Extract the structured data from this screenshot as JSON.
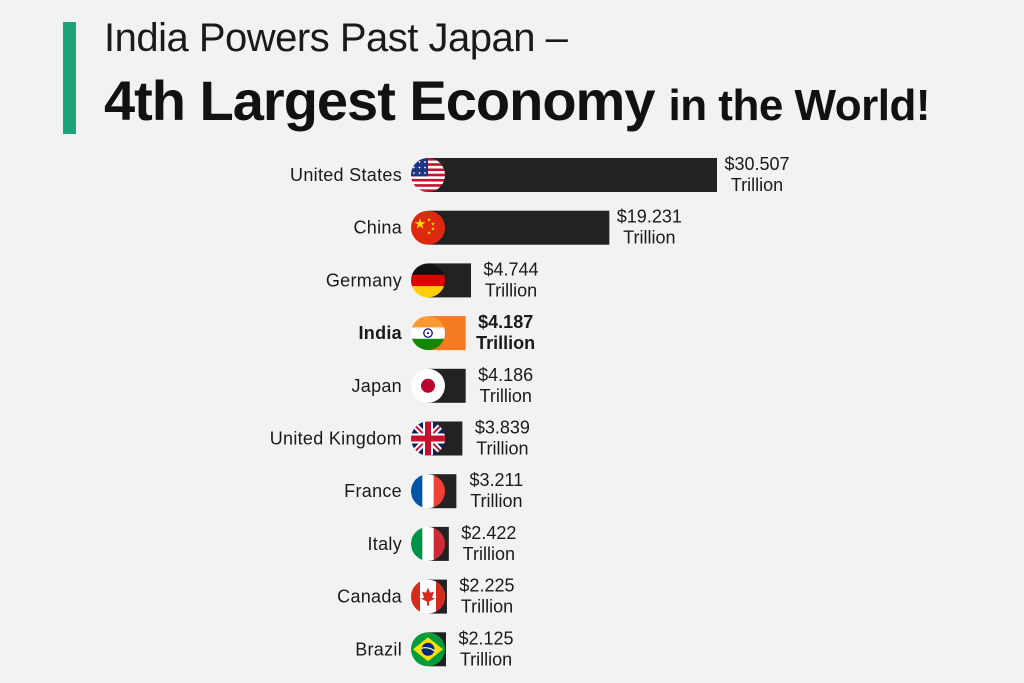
{
  "header": {
    "title_line1": "India Powers Past Japan –",
    "title_line2_big": "4th Largest Economy",
    "title_line2_small": "in the World!",
    "accent_color": "#1ba37a"
  },
  "chart_data": {
    "type": "bar",
    "orientation": "horizontal",
    "title": "India Powers Past Japan – 4th Largest Economy in the World!",
    "unit_prefix": "$",
    "unit_suffix": "Trillion",
    "categories": [
      "United States",
      "China",
      "Germany",
      "India",
      "Japan",
      "United Kingdom",
      "France",
      "Italy",
      "Canada",
      "Brazil"
    ],
    "values": [
      30.507,
      19.231,
      4.744,
      4.187,
      4.186,
      3.839,
      3.211,
      2.422,
      2.225,
      2.125
    ],
    "value_labels": [
      "$30.507",
      "$19.231",
      "$4.744",
      "$4.187",
      "$4.186",
      "$3.839",
      "$3.211",
      "$2.422",
      "$2.225",
      "$2.125"
    ],
    "highlight": "India",
    "flag_icons": [
      "us-flag-icon",
      "china-flag-icon",
      "germany-flag-icon",
      "india-flag-icon",
      "japan-flag-icon",
      "uk-flag-icon",
      "france-flag-icon",
      "italy-flag-icon",
      "canada-flag-icon",
      "brazil-flag-icon"
    ],
    "bar_color": "#222222",
    "highlight_color": "#f47b20",
    "grid": false,
    "legend": "none"
  }
}
